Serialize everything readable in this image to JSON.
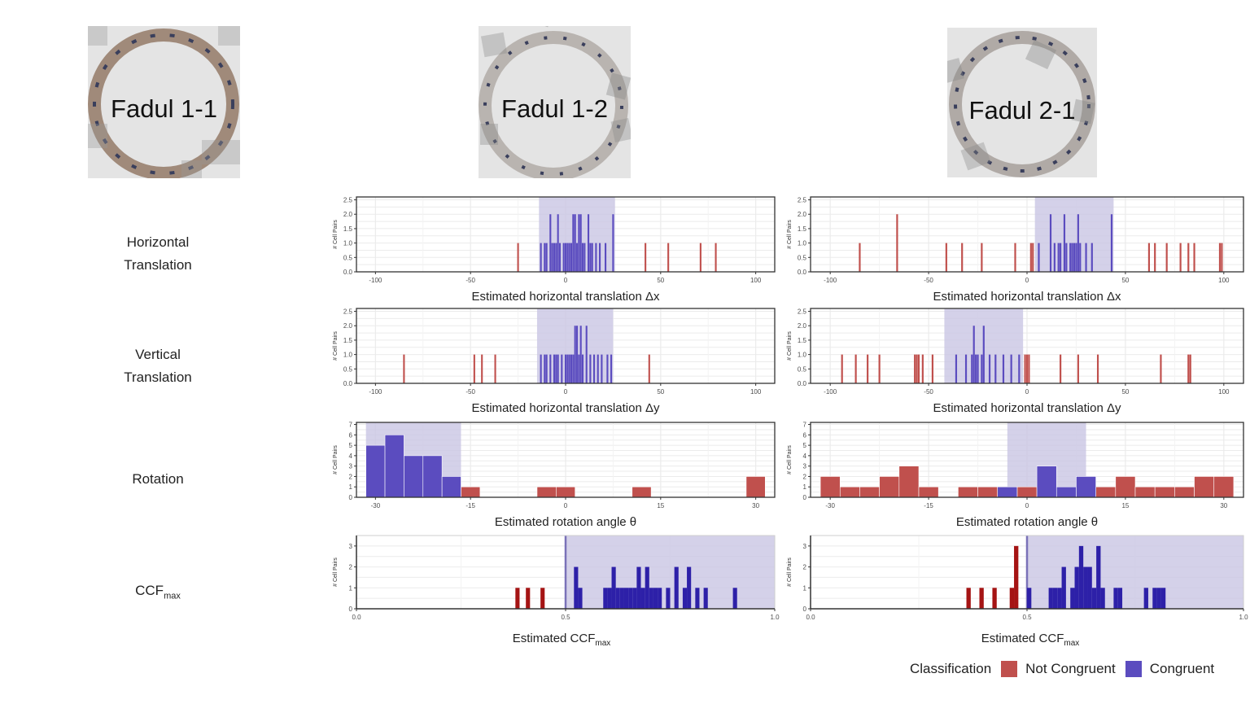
{
  "colors": {
    "not_congruent": "#c0504d",
    "congruent": "#5b4cbf",
    "not_congruent_dark": "#a51414",
    "congruent_dark": "#2d20a8",
    "band": "#c9c6e4"
  },
  "scans": [
    {
      "title": "Fadul 1-1"
    },
    {
      "title": "Fadul 1-2"
    },
    {
      "title": "Fadul 2-1"
    }
  ],
  "row_labels": {
    "horizontal": [
      "Horizontal",
      "Translation"
    ],
    "vertical": [
      "Vertical",
      "Translation"
    ],
    "rotation": "Rotation",
    "ccf_main": "CCF",
    "ccf_sub": "max"
  },
  "legend": {
    "title": "Classification",
    "items": [
      {
        "label": "Not Congruent",
        "color": "#c0504d"
      },
      {
        "label": "Congruent",
        "color": "#5b4cbf"
      }
    ]
  },
  "chart_data": [
    {
      "id": "dx_12",
      "type": "bar",
      "xlabel": "Estimated horizontal translation Δx",
      "ylabel": "# Cell Pairs",
      "xlim": [
        -110,
        110
      ],
      "ylim": [
        0,
        2.6
      ],
      "xticks": [
        -100,
        -50,
        0,
        50,
        100
      ],
      "yticks": [
        0,
        0.5,
        1,
        1.5,
        2,
        2.5
      ],
      "ytick_labels": [
        "0.0",
        "0.5",
        "1.0",
        "1.5",
        "2.0",
        "2.5"
      ],
      "band": [
        -14,
        26
      ],
      "bar_width": 0.9,
      "not_congruent": {
        "x": [
          -25,
          42,
          54,
          71,
          79
        ],
        "y": [
          1,
          1,
          1,
          1,
          1
        ]
      },
      "congruent": {
        "x": [
          -13,
          -11,
          -10,
          -8,
          -7,
          -6,
          -5,
          -4,
          -3,
          -1,
          0,
          1,
          2,
          3,
          4,
          5,
          6,
          7,
          8,
          9,
          10,
          12,
          13,
          14,
          16,
          18,
          21,
          25
        ],
        "y": [
          1,
          1,
          1,
          2,
          1,
          1,
          1,
          2,
          1,
          1,
          1,
          1,
          1,
          1,
          2,
          2,
          1,
          2,
          2,
          1,
          1,
          2,
          1,
          1,
          1,
          1,
          1,
          2
        ]
      }
    },
    {
      "id": "dx_21",
      "type": "bar",
      "xlabel": "Estimated horizontal translation Δx",
      "ylabel": "# Cell Pairs",
      "xlim": [
        -110,
        110
      ],
      "ylim": [
        0,
        2.6
      ],
      "xticks": [
        -100,
        -50,
        0,
        50,
        100
      ],
      "yticks": [
        0,
        0.5,
        1,
        1.5,
        2,
        2.5
      ],
      "ytick_labels": [
        "0.0",
        "0.5",
        "1.0",
        "1.5",
        "2.0",
        "2.5"
      ],
      "band": [
        4,
        44
      ],
      "bar_width": 0.9,
      "not_congruent": {
        "x": [
          -85,
          -66,
          -41,
          -33,
          -23,
          -6,
          2,
          3,
          62,
          65,
          71,
          78,
          82,
          85,
          98,
          99
        ],
        "y": [
          1,
          2,
          1,
          1,
          1,
          1,
          1,
          1,
          1,
          1,
          1,
          1,
          1,
          1,
          1,
          1
        ]
      },
      "congruent": {
        "x": [
          6,
          12,
          14,
          16,
          17,
          19,
          20,
          22,
          23,
          24,
          25,
          26,
          27,
          30,
          33,
          43
        ],
        "y": [
          1,
          2,
          1,
          1,
          1,
          2,
          1,
          1,
          1,
          1,
          1,
          2,
          1,
          1,
          1,
          2
        ]
      }
    },
    {
      "id": "dy_12",
      "type": "bar",
      "xlabel": "Estimated horizontal translation Δy",
      "ylabel": "# Cell Pairs",
      "xlim": [
        -110,
        110
      ],
      "ylim": [
        0,
        2.6
      ],
      "xticks": [
        -100,
        -50,
        0,
        50,
        100
      ],
      "yticks": [
        0,
        0.5,
        1,
        1.5,
        2,
        2.5
      ],
      "ytick_labels": [
        "0.0",
        "0.5",
        "1.0",
        "1.5",
        "2.0",
        "2.5"
      ],
      "band": [
        -15,
        25
      ],
      "bar_width": 0.9,
      "not_congruent": {
        "x": [
          -85,
          -48,
          -44,
          -37,
          44
        ],
        "y": [
          1,
          1,
          1,
          1,
          1
        ]
      },
      "congruent": {
        "x": [
          -13,
          -11,
          -10,
          -8,
          -6,
          -5,
          -4,
          -2,
          0,
          1,
          2,
          3,
          4,
          5,
          6,
          7,
          8,
          9,
          11,
          13,
          15,
          17,
          19,
          22,
          24
        ],
        "y": [
          1,
          1,
          1,
          1,
          1,
          1,
          1,
          1,
          1,
          1,
          1,
          1,
          1,
          2,
          2,
          1,
          2,
          1,
          2,
          1,
          1,
          1,
          1,
          1,
          1
        ]
      }
    },
    {
      "id": "dy_21",
      "type": "bar",
      "xlabel": "Estimated horizontal translation Δy",
      "ylabel": "# Cell Pairs",
      "xlim": [
        -110,
        110
      ],
      "ylim": [
        0,
        2.6
      ],
      "xticks": [
        -100,
        -50,
        0,
        50,
        100
      ],
      "yticks": [
        0,
        0.5,
        1,
        1.5,
        2,
        2.5
      ],
      "ytick_labels": [
        "0.0",
        "0.5",
        "1.0",
        "1.5",
        "2.0",
        "2.5"
      ],
      "band": [
        -42,
        -2
      ],
      "bar_width": 0.9,
      "not_congruent": {
        "x": [
          -94,
          -87,
          -81,
          -75,
          -57,
          -56,
          -55,
          -53,
          -48,
          -1,
          0,
          1,
          17,
          26,
          36,
          68,
          82,
          83
        ],
        "y": [
          1,
          1,
          1,
          1,
          1,
          1,
          1,
          1,
          1,
          1,
          1,
          1,
          1,
          1,
          1,
          1,
          1,
          1
        ]
      },
      "congruent": {
        "x": [
          -36,
          -31,
          -28,
          -27,
          -26,
          -25,
          -23,
          -22,
          -19,
          -16,
          -12,
          -8,
          -4
        ],
        "y": [
          1,
          1,
          1,
          2,
          1,
          1,
          1,
          2,
          1,
          1,
          1,
          1,
          1
        ]
      }
    },
    {
      "id": "rot_12",
      "type": "bar",
      "xlabel": "Estimated rotation angle θ",
      "ylabel": "# Cell Pairs",
      "xlim": [
        -33,
        33
      ],
      "ylim": [
        0,
        7.2
      ],
      "xticks": [
        -30,
        -15,
        0,
        15,
        30
      ],
      "yticks": [
        0,
        1,
        2,
        3,
        4,
        5,
        6,
        7
      ],
      "ytick_labels": [
        "0",
        "1",
        "2",
        "3",
        "4",
        "5",
        "6",
        "7"
      ],
      "band": [
        -31.5,
        -16.5
      ],
      "bar_width": 3,
      "not_congruent": {
        "x": [
          -15,
          -3,
          0,
          12,
          30
        ],
        "y": [
          1,
          1,
          1,
          1,
          2
        ]
      },
      "congruent": {
        "x": [
          -30,
          -27,
          -24,
          -21,
          -18
        ],
        "y": [
          5,
          6,
          4,
          4,
          2
        ]
      }
    },
    {
      "id": "rot_21",
      "type": "bar",
      "xlabel": "Estimated rotation angle θ",
      "ylabel": "# Cell Pairs",
      "xlim": [
        -33,
        33
      ],
      "ylim": [
        0,
        7.2
      ],
      "xticks": [
        -30,
        -15,
        0,
        15,
        30
      ],
      "yticks": [
        0,
        1,
        2,
        3,
        4,
        5,
        6,
        7
      ],
      "ytick_labels": [
        "0",
        "1",
        "2",
        "3",
        "4",
        "5",
        "6",
        "7"
      ],
      "band": [
        -3,
        9
      ],
      "bar_width": 3,
      "not_congruent": {
        "x": [
          -30,
          -27,
          -24,
          -21,
          -18,
          -15,
          -9,
          -6,
          0,
          12,
          15,
          18,
          21,
          24,
          27,
          30
        ],
        "y": [
          2,
          1,
          1,
          2,
          3,
          1,
          1,
          1,
          1,
          1,
          2,
          1,
          1,
          1,
          2,
          2
        ]
      },
      "congruent": {
        "x": [
          -3,
          3,
          6,
          9
        ],
        "y": [
          1,
          3,
          1,
          2
        ]
      }
    },
    {
      "id": "ccf_12",
      "type": "bar",
      "xlabel_main": "Estimated CCF",
      "xlabel_sub": "max",
      "ylabel": "# Cell Pairs",
      "xlim": [
        0,
        1
      ],
      "ylim": [
        0,
        3.5
      ],
      "xticks": [
        0,
        0.5,
        1
      ],
      "xtick_labels": [
        "0.0",
        "0.5",
        "1.0"
      ],
      "yticks": [
        0,
        1,
        2,
        3
      ],
      "ytick_labels": [
        "0",
        "1",
        "2",
        "3"
      ],
      "band": [
        0.5,
        1.0
      ],
      "threshold": 0.5,
      "bar_width": 0.01,
      "style": "dark",
      "not_congruent": {
        "x": [
          0.385,
          0.41,
          0.445
        ],
        "y": [
          1,
          1,
          1
        ]
      },
      "congruent": {
        "x": [
          0.525,
          0.535,
          0.595,
          0.605,
          0.615,
          0.625,
          0.635,
          0.645,
          0.655,
          0.665,
          0.675,
          0.685,
          0.695,
          0.705,
          0.715,
          0.725,
          0.745,
          0.765,
          0.785,
          0.795,
          0.815,
          0.835,
          0.905
        ],
        "y": [
          2,
          1,
          1,
          1,
          2,
          1,
          1,
          1,
          1,
          1,
          2,
          1,
          2,
          1,
          1,
          1,
          1,
          2,
          1,
          2,
          1,
          1,
          1
        ]
      }
    },
    {
      "id": "ccf_21",
      "type": "bar",
      "xlabel_main": "Estimated CCF",
      "xlabel_sub": "max",
      "ylabel": "# Cell Pairs",
      "xlim": [
        0,
        1
      ],
      "ylim": [
        0,
        3.5
      ],
      "xticks": [
        0,
        0.5,
        1
      ],
      "xtick_labels": [
        "0.0",
        "0.5",
        "1.0"
      ],
      "yticks": [
        0,
        1,
        2,
        3
      ],
      "ytick_labels": [
        "0",
        "1",
        "2",
        "3"
      ],
      "band": [
        0.5,
        1.0
      ],
      "threshold": 0.5,
      "bar_width": 0.01,
      "style": "dark",
      "not_congruent": {
        "x": [
          0.365,
          0.395,
          0.425,
          0.465,
          0.475
        ],
        "y": [
          1,
          1,
          1,
          1,
          3
        ]
      },
      "congruent": {
        "x": [
          0.505,
          0.555,
          0.565,
          0.575,
          0.585,
          0.605,
          0.615,
          0.625,
          0.635,
          0.645,
          0.655,
          0.665,
          0.675,
          0.705,
          0.715,
          0.775,
          0.795,
          0.805,
          0.815
        ],
        "y": [
          1,
          1,
          1,
          1,
          2,
          1,
          2,
          3,
          2,
          2,
          1,
          3,
          1,
          1,
          1,
          1,
          1,
          1,
          1
        ]
      }
    }
  ]
}
